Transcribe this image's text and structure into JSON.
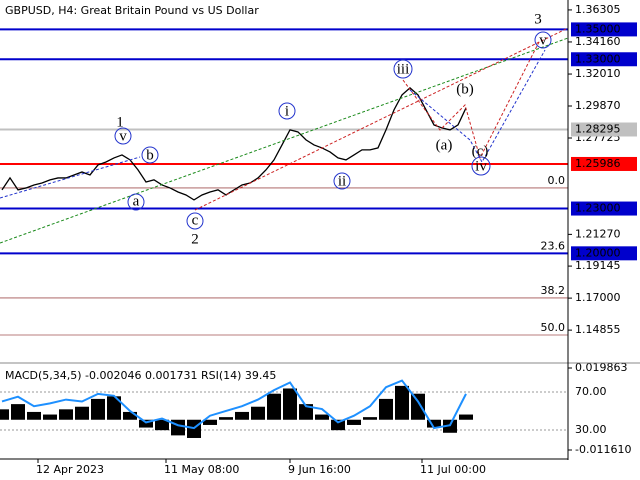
{
  "chart_data": [
    {
      "type": "line",
      "title": "GBPUSD, H4:  Great Britain Pound vs US Dollar",
      "x": [
        0,
        2,
        4,
        6,
        8,
        10,
        12,
        14,
        16,
        18,
        20,
        22,
        24,
        26,
        28,
        30,
        32,
        34,
        36,
        38,
        40,
        42,
        44,
        46,
        48,
        50,
        52,
        54,
        56,
        58,
        60,
        62,
        64,
        66,
        68,
        70,
        72,
        74,
        76,
        78,
        80,
        82,
        84,
        86,
        88,
        90,
        92,
        94,
        96,
        98,
        100,
        102,
        104,
        106,
        108,
        110,
        112,
        114,
        116
      ],
      "series": [
        {
          "name": "GBPUSD",
          "color": "#000000",
          "values": [
            1.2425,
            1.2505,
            1.2425,
            1.2438,
            1.2458,
            1.2471,
            1.2492,
            1.2505,
            1.2505,
            1.2525,
            1.2545,
            1.2525,
            1.2592,
            1.2612,
            1.2639,
            1.2659,
            1.2626,
            1.2559,
            1.2478,
            1.2492,
            1.2458,
            1.2438,
            1.2411,
            1.2391,
            1.2358,
            1.2391,
            1.2411,
            1.2425,
            1.2391,
            1.2425,
            1.2458,
            1.2471,
            1.2505,
            1.2559,
            1.2626,
            1.2726,
            1.2827,
            1.2813,
            1.276,
            1.2726,
            1.2706,
            1.2679,
            1.2639,
            1.2626,
            1.2659,
            1.2693,
            1.2693,
            1.2706,
            1.2827,
            1.2961,
            1.3061,
            1.3108,
            1.3061,
            1.2961,
            1.286,
            1.284,
            1.2827,
            1.286,
            1.2974
          ]
        }
      ],
      "xlim": [
        0,
        142
      ],
      "xticks": [
        {
          "value": 9,
          "label": "12 Apr 2023"
        },
        {
          "value": 41,
          "label": "11 May 08:00"
        },
        {
          "value": 72,
          "label": "9 Jun 16:00"
        },
        {
          "value": 105,
          "label": "11 Jul 00:00"
        }
      ],
      "ylim": [
        1.1272,
        1.3697
      ],
      "yticks": [
        {
          "value": 1.36305,
          "label": "1.36305"
        },
        {
          "value": 1.3416,
          "label": "1.34160"
        },
        {
          "value": 1.3201,
          "label": "1.32010"
        },
        {
          "value": 1.2987,
          "label": "1.29870"
        },
        {
          "value": 1.27725,
          "label": "1.27725"
        },
        {
          "value": 1.2127,
          "label": "1.21270"
        },
        {
          "value": 1.19145,
          "label": "1.19145"
        },
        {
          "value": 1.17,
          "label": "1.17000"
        },
        {
          "value": 1.14855,
          "label": "1.14855"
        }
      ],
      "levels": [
        {
          "value": 1.35,
          "label": "1.35000",
          "color": "#0000cc"
        },
        {
          "value": 1.33,
          "label": "1.33000",
          "color": "#0000cc"
        },
        {
          "value": 1.28295,
          "label": "1.28295",
          "color": "#c0c0c0"
        },
        {
          "value": 1.25986,
          "label": "1.25986",
          "color": "#ff0000"
        },
        {
          "value": 1.23,
          "label": "1.23000",
          "color": "#0000cc"
        },
        {
          "value": 1.2,
          "label": "1.20000",
          "color": "#0000cc"
        }
      ],
      "fib_levels": [
        {
          "value": 1.2438,
          "label": "0.0"
        },
        {
          "value": 1.2,
          "label": "23.6"
        },
        {
          "value": 1.1701,
          "label": "38.2"
        },
        {
          "value": 1.1453,
          "label": "50.0"
        }
      ],
      "annotations": [
        "1",
        "2",
        "3",
        "v",
        "b",
        "a",
        "c",
        "i",
        "ii",
        "iii",
        "iv",
        "v",
        "(a)",
        "(b)",
        "(c)"
      ]
    },
    {
      "type": "bar",
      "title": "MACD(5,34,5) -0.002046 0.001731 RSI(14) 39.45",
      "x": [
        0,
        4,
        8,
        12,
        16,
        20,
        24,
        28,
        32,
        36,
        40,
        44,
        48,
        52,
        56,
        60,
        64,
        68,
        72,
        76,
        80,
        84,
        88,
        92,
        96,
        100,
        104,
        108,
        112,
        116
      ],
      "series": [
        {
          "name": "MACD",
          "color": "#000000",
          "values": [
            0.004,
            0.006,
            0.003,
            0.002,
            0.004,
            0.005,
            0.008,
            0.009,
            0.003,
            -0.003,
            -0.004,
            -0.006,
            -0.007,
            -0.002,
            0.001,
            0.003,
            0.005,
            0.01,
            0.012,
            0.006,
            0.002,
            -0.004,
            -0.002,
            0.001,
            0.008,
            0.013,
            0.01,
            -0.003,
            -0.005,
            0.002
          ]
        },
        {
          "name": "RSI",
          "color": "#1e90ff",
          "axis": "y2",
          "values": [
            60,
            65,
            55,
            58,
            62,
            60,
            68,
            66,
            50,
            38,
            42,
            35,
            32,
            45,
            50,
            55,
            62,
            72,
            80,
            55,
            52,
            38,
            45,
            55,
            75,
            82,
            60,
            32,
            35,
            68
          ]
        }
      ],
      "xlim": [
        0,
        142
      ],
      "ylim": [
        -0.014683,
        0.021015
      ],
      "yticks": [
        {
          "value": 0.019863,
          "label": "0.019863"
        },
        {
          "value": -0.01161,
          "label": "-0.011610"
        }
      ],
      "y2lim": [
        0.5,
        98.4
      ],
      "y2ticks": [
        {
          "value": 70,
          "label": "70.00"
        },
        {
          "value": 30,
          "label": "30.00"
        }
      ]
    }
  ]
}
